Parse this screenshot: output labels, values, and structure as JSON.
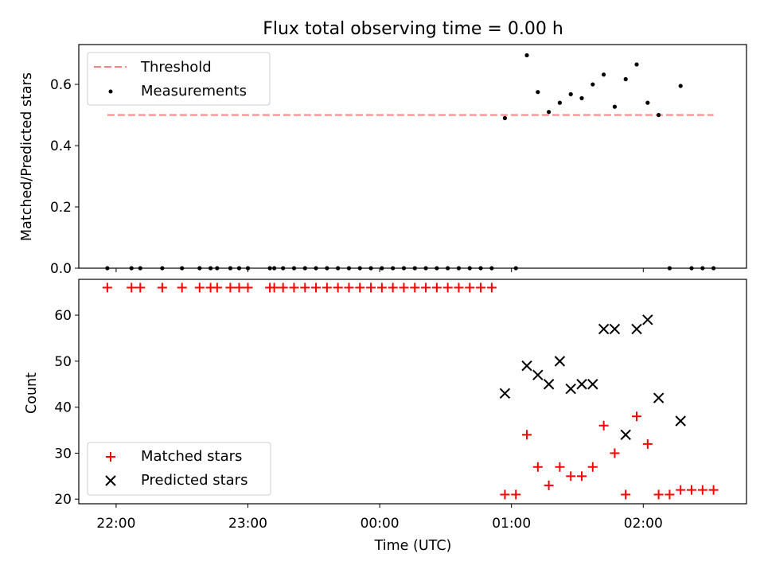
{
  "chart_data": {
    "type": "scatter",
    "title": "Flux total observing time = 0.00 h",
    "xlabel": "Time (UTC)",
    "x_tick_labels": [
      "22:00",
      "23:00",
      "00:00",
      "01:00",
      "02:00"
    ],
    "x_tick_times": [
      "21:59",
      "22:59",
      "23:59",
      "00:59",
      "01:59"
    ],
    "x_range": [
      "21:42",
      "02:46"
    ],
    "top_panel": {
      "ylabel": "Matched/Predicted stars",
      "ylim": [
        0,
        0.73
      ],
      "yticks": [
        "0.0",
        "0.2",
        "0.4",
        "0.6"
      ],
      "legend_position": "upper left",
      "threshold": {
        "name": "Threshold",
        "value": 0.5,
        "x_start": "21:55",
        "x_end": "02:31",
        "color": "#ff8080"
      },
      "measurements": {
        "name": "Measurements",
        "color": "#000000",
        "points": [
          [
            "21:55",
            0.0
          ],
          [
            "22:06",
            0.0
          ],
          [
            "22:10",
            0.0
          ],
          [
            "22:20",
            0.0
          ],
          [
            "22:29",
            0.0
          ],
          [
            "22:37",
            0.0
          ],
          [
            "22:42",
            0.0
          ],
          [
            "22:45",
            0.0
          ],
          [
            "22:51",
            0.0
          ],
          [
            "22:55",
            0.0
          ],
          [
            "22:59",
            0.0
          ],
          [
            "23:09",
            0.0
          ],
          [
            "23:11",
            0.0
          ],
          [
            "23:15",
            0.0
          ],
          [
            "23:20",
            0.0
          ],
          [
            "23:25",
            0.0
          ],
          [
            "23:30",
            0.0
          ],
          [
            "23:35",
            0.0
          ],
          [
            "23:40",
            0.0
          ],
          [
            "23:45",
            0.0
          ],
          [
            "23:50",
            0.0
          ],
          [
            "23:55",
            0.0
          ],
          [
            "00:00",
            0.0
          ],
          [
            "00:05",
            0.0
          ],
          [
            "00:10",
            0.0
          ],
          [
            "00:15",
            0.0
          ],
          [
            "00:20",
            0.0
          ],
          [
            "00:25",
            0.0
          ],
          [
            "00:30",
            0.0
          ],
          [
            "00:35",
            0.0
          ],
          [
            "00:40",
            0.0
          ],
          [
            "00:45",
            0.0
          ],
          [
            "00:50",
            0.0
          ],
          [
            "00:56",
            0.49
          ],
          [
            "01:01",
            0.0
          ],
          [
            "01:06",
            0.695
          ],
          [
            "01:11",
            0.575
          ],
          [
            "01:16",
            0.51
          ],
          [
            "01:21",
            0.54
          ],
          [
            "01:26",
            0.568
          ],
          [
            "01:31",
            0.555
          ],
          [
            "01:36",
            0.6
          ],
          [
            "01:41",
            0.632
          ],
          [
            "01:46",
            0.527
          ],
          [
            "01:51",
            0.617
          ],
          [
            "01:56",
            0.665
          ],
          [
            "02:01",
            0.54
          ],
          [
            "02:06",
            0.5
          ],
          [
            "02:11",
            0.0
          ],
          [
            "02:16",
            0.595
          ],
          [
            "02:21",
            0.0
          ],
          [
            "02:26",
            0.0
          ],
          [
            "02:31",
            0.0
          ]
        ]
      }
    },
    "bottom_panel": {
      "ylabel": "Count",
      "ylim": [
        19,
        67.8
      ],
      "yticks": [
        "20",
        "30",
        "40",
        "50",
        "60"
      ],
      "legend_position": "lower left",
      "matched_stars": {
        "name": "Matched stars",
        "color": "#ff0000",
        "points": [
          [
            "21:55",
            66
          ],
          [
            "22:06",
            66
          ],
          [
            "22:10",
            66
          ],
          [
            "22:20",
            66
          ],
          [
            "22:29",
            66
          ],
          [
            "22:37",
            66
          ],
          [
            "22:42",
            66
          ],
          [
            "22:45",
            66
          ],
          [
            "22:51",
            66
          ],
          [
            "22:55",
            66
          ],
          [
            "22:59",
            66
          ],
          [
            "23:09",
            66
          ],
          [
            "23:11",
            66
          ],
          [
            "23:15",
            66
          ],
          [
            "23:20",
            66
          ],
          [
            "23:25",
            66
          ],
          [
            "23:30",
            66
          ],
          [
            "23:35",
            66
          ],
          [
            "23:40",
            66
          ],
          [
            "23:45",
            66
          ],
          [
            "23:50",
            66
          ],
          [
            "23:55",
            66
          ],
          [
            "00:00",
            66
          ],
          [
            "00:05",
            66
          ],
          [
            "00:10",
            66
          ],
          [
            "00:15",
            66
          ],
          [
            "00:20",
            66
          ],
          [
            "00:25",
            66
          ],
          [
            "00:30",
            66
          ],
          [
            "00:35",
            66
          ],
          [
            "00:40",
            66
          ],
          [
            "00:45",
            66
          ],
          [
            "00:50",
            66
          ],
          [
            "00:56",
            21
          ],
          [
            "01:01",
            21
          ],
          [
            "01:06",
            34
          ],
          [
            "01:11",
            27
          ],
          [
            "01:16",
            23
          ],
          [
            "01:21",
            27
          ],
          [
            "01:26",
            25
          ],
          [
            "01:31",
            25
          ],
          [
            "01:36",
            27
          ],
          [
            "01:41",
            36
          ],
          [
            "01:46",
            30
          ],
          [
            "01:51",
            21
          ],
          [
            "01:56",
            38
          ],
          [
            "02:01",
            32
          ],
          [
            "02:06",
            21
          ],
          [
            "02:11",
            21
          ],
          [
            "02:16",
            22
          ],
          [
            "02:21",
            22
          ],
          [
            "02:26",
            22
          ],
          [
            "02:31",
            22
          ]
        ]
      },
      "predicted_stars": {
        "name": "Predicted stars",
        "color": "#000000",
        "points": [
          [
            "00:56",
            43
          ],
          [
            "01:06",
            49
          ],
          [
            "01:11",
            47
          ],
          [
            "01:16",
            45
          ],
          [
            "01:21",
            50
          ],
          [
            "01:26",
            44
          ],
          [
            "01:31",
            45
          ],
          [
            "01:36",
            45
          ],
          [
            "01:41",
            57
          ],
          [
            "01:46",
            57
          ],
          [
            "01:51",
            34
          ],
          [
            "01:56",
            57
          ],
          [
            "02:01",
            59
          ],
          [
            "02:06",
            42
          ],
          [
            "02:16",
            37
          ]
        ]
      }
    }
  }
}
